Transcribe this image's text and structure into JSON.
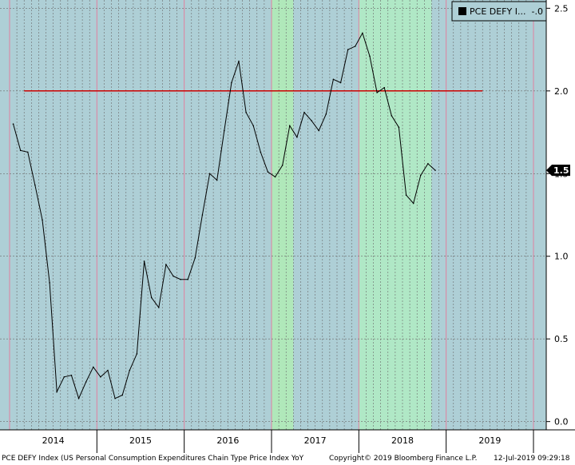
{
  "chart_data": {
    "type": "line",
    "legend": {
      "label": "PCE DEFY I...",
      "value": "-.0",
      "position": "top-right"
    },
    "y_axis": {
      "side": "right",
      "range": [
        -0.05,
        2.55
      ],
      "ticks": [
        "0.0",
        "0.5",
        "1.0",
        "1.5",
        "2.0",
        "2.5"
      ],
      "tick_values": [
        0.0,
        0.5,
        1.0,
        1.5,
        2.0,
        2.5
      ]
    },
    "x_axis": {
      "start": "2014-01-01",
      "end": "2019-12-31",
      "year_labels": [
        "2014",
        "2015",
        "2016",
        "2017",
        "2018",
        "2019"
      ],
      "grid": "monthly dashed"
    },
    "last_value_label": "1.5",
    "reference_line": {
      "value": 2.0,
      "color": "#cc0000",
      "from": "2014-03",
      "to": "2019-06"
    },
    "shaded_regions": [
      {
        "from": "2017-01",
        "to": "2017-03",
        "color": "#b0f0b0"
      },
      {
        "from": "2018-01",
        "to": "2018-10",
        "color": "#b0f0c0"
      }
    ],
    "series": [
      {
        "line_color": "#000000",
        "points": [
          [
            "2014-01",
            1.8
          ],
          [
            "2014-02",
            1.64
          ],
          [
            "2014-03",
            1.63
          ],
          [
            "2014-04",
            1.43
          ],
          [
            "2014-05",
            1.22
          ],
          [
            "2014-06",
            0.84
          ],
          [
            "2014-07",
            0.18
          ],
          [
            "2014-08",
            0.27
          ],
          [
            "2014-09",
            0.28
          ],
          [
            "2014-10",
            0.14
          ],
          [
            "2014-11",
            0.24
          ],
          [
            "2014-12",
            0.33
          ],
          [
            "2015-01",
            0.27
          ],
          [
            "2015-02",
            0.31
          ],
          [
            "2015-03",
            0.14
          ],
          [
            "2015-04",
            0.16
          ],
          [
            "2015-05",
            0.31
          ],
          [
            "2015-06",
            0.41
          ],
          [
            "2015-07",
            0.97
          ],
          [
            "2015-08",
            0.75
          ],
          [
            "2015-09",
            0.69
          ],
          [
            "2015-10",
            0.95
          ],
          [
            "2015-11",
            0.88
          ],
          [
            "2015-12",
            0.86
          ],
          [
            "2016-01",
            0.86
          ],
          [
            "2016-02",
            0.99
          ],
          [
            "2016-03",
            1.25
          ],
          [
            "2016-04",
            1.5
          ],
          [
            "2016-05",
            1.46
          ],
          [
            "2016-06",
            1.76
          ],
          [
            "2016-07",
            2.05
          ],
          [
            "2016-08",
            2.18
          ],
          [
            "2016-09",
            1.87
          ],
          [
            "2016-10",
            1.79
          ],
          [
            "2016-11",
            1.63
          ],
          [
            "2016-12",
            1.51
          ],
          [
            "2017-01",
            1.48
          ],
          [
            "2017-02",
            1.55
          ],
          [
            "2017-03",
            1.79
          ],
          [
            "2017-04",
            1.72
          ],
          [
            "2017-05",
            1.87
          ],
          [
            "2017-06",
            1.82
          ],
          [
            "2017-07",
            1.76
          ],
          [
            "2017-08",
            1.86
          ],
          [
            "2017-09",
            2.07
          ],
          [
            "2017-10",
            2.05
          ],
          [
            "2017-11",
            2.25
          ],
          [
            "2017-12",
            2.27
          ],
          [
            "2018-01",
            2.35
          ],
          [
            "2018-02",
            2.21
          ],
          [
            "2018-03",
            1.99
          ],
          [
            "2018-04",
            2.02
          ],
          [
            "2018-05",
            1.85
          ],
          [
            "2018-06",
            1.78
          ],
          [
            "2018-07",
            1.37
          ],
          [
            "2018-08",
            1.32
          ],
          [
            "2018-09",
            1.49
          ],
          [
            "2018-10",
            1.56
          ],
          [
            "2018-11",
            1.52
          ]
        ]
      }
    ]
  },
  "footer": {
    "description": "PCE DEFY Index (US Personal Consumption Expenditures Chain Type Price Index YoY",
    "copyright": "Copyright© 2019 Bloomberg Finance L.P.",
    "timestamp": "12-Jul-2019 09:29:18"
  },
  "colors": {
    "plot_bg": "#aecfd6",
    "grid": "#6b6b6b",
    "line": "#000000",
    "reference": "#cc0000",
    "year_divider": "#e080a0"
  }
}
